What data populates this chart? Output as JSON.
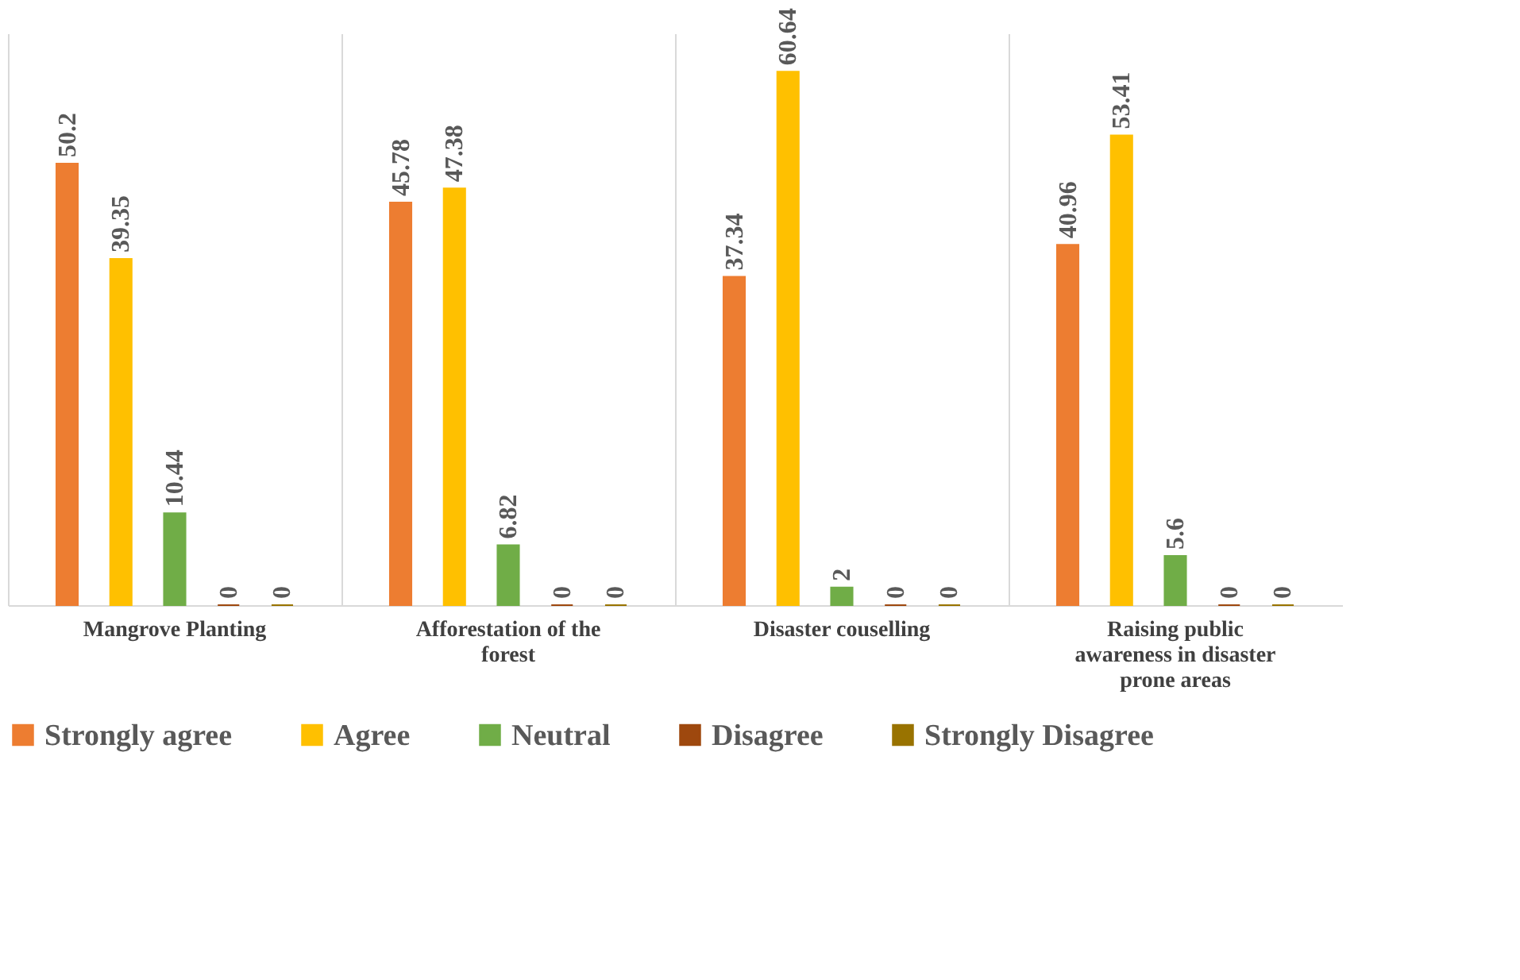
{
  "chart_data": {
    "type": "bar",
    "categories": [
      "Mangrove Planting",
      "Afforestation of the forest",
      "Disaster couselling",
      "Raising public awareness in disaster prone areas"
    ],
    "series": [
      {
        "name": "Strongly agree",
        "color": "#ed7d31",
        "values": [
          50.2,
          45.78,
          37.34,
          40.96
        ]
      },
      {
        "name": "Agree",
        "color": "#ffc000",
        "values": [
          39.35,
          47.38,
          60.64,
          53.41
        ]
      },
      {
        "name": "Neutral",
        "color": "#70ad47",
        "values": [
          10.44,
          6.82,
          2,
          5.6
        ]
      },
      {
        "name": "Disagree",
        "color": "#9e480e",
        "values": [
          0,
          0,
          0,
          0
        ]
      },
      {
        "name": "Strongly Disagree",
        "color": "#997300",
        "values": [
          0,
          0,
          0,
          0
        ]
      }
    ],
    "data_labels": true,
    "grid": "x",
    "legend": "bottom",
    "tick_labels": "x"
  }
}
